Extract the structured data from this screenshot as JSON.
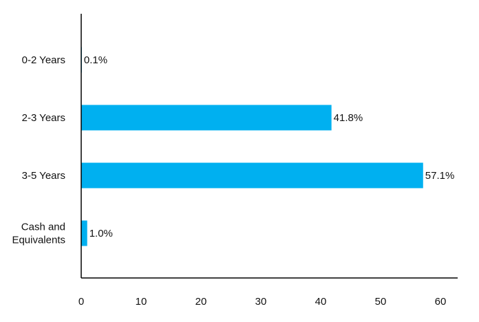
{
  "chart_data": {
    "type": "bar",
    "orientation": "horizontal",
    "categories": [
      "0-2 Years",
      "2-3 Years",
      "3-5 Years",
      "Cash and Equivalents"
    ],
    "category_lines": [
      [
        "0-2 Years"
      ],
      [
        "2-3 Years"
      ],
      [
        "3-5 Years"
      ],
      [
        "Cash and",
        "Equivalents"
      ]
    ],
    "values": [
      0.1,
      41.8,
      57.1,
      1.0
    ],
    "data_labels": [
      "0.1%",
      "41.8%",
      "57.1%",
      "1.0%"
    ],
    "xticks": [
      "0",
      "10",
      "20",
      "30",
      "40",
      "50",
      "60"
    ],
    "xlim": [
      0,
      63
    ],
    "grid": false,
    "bar_color": "#00b0f0"
  }
}
